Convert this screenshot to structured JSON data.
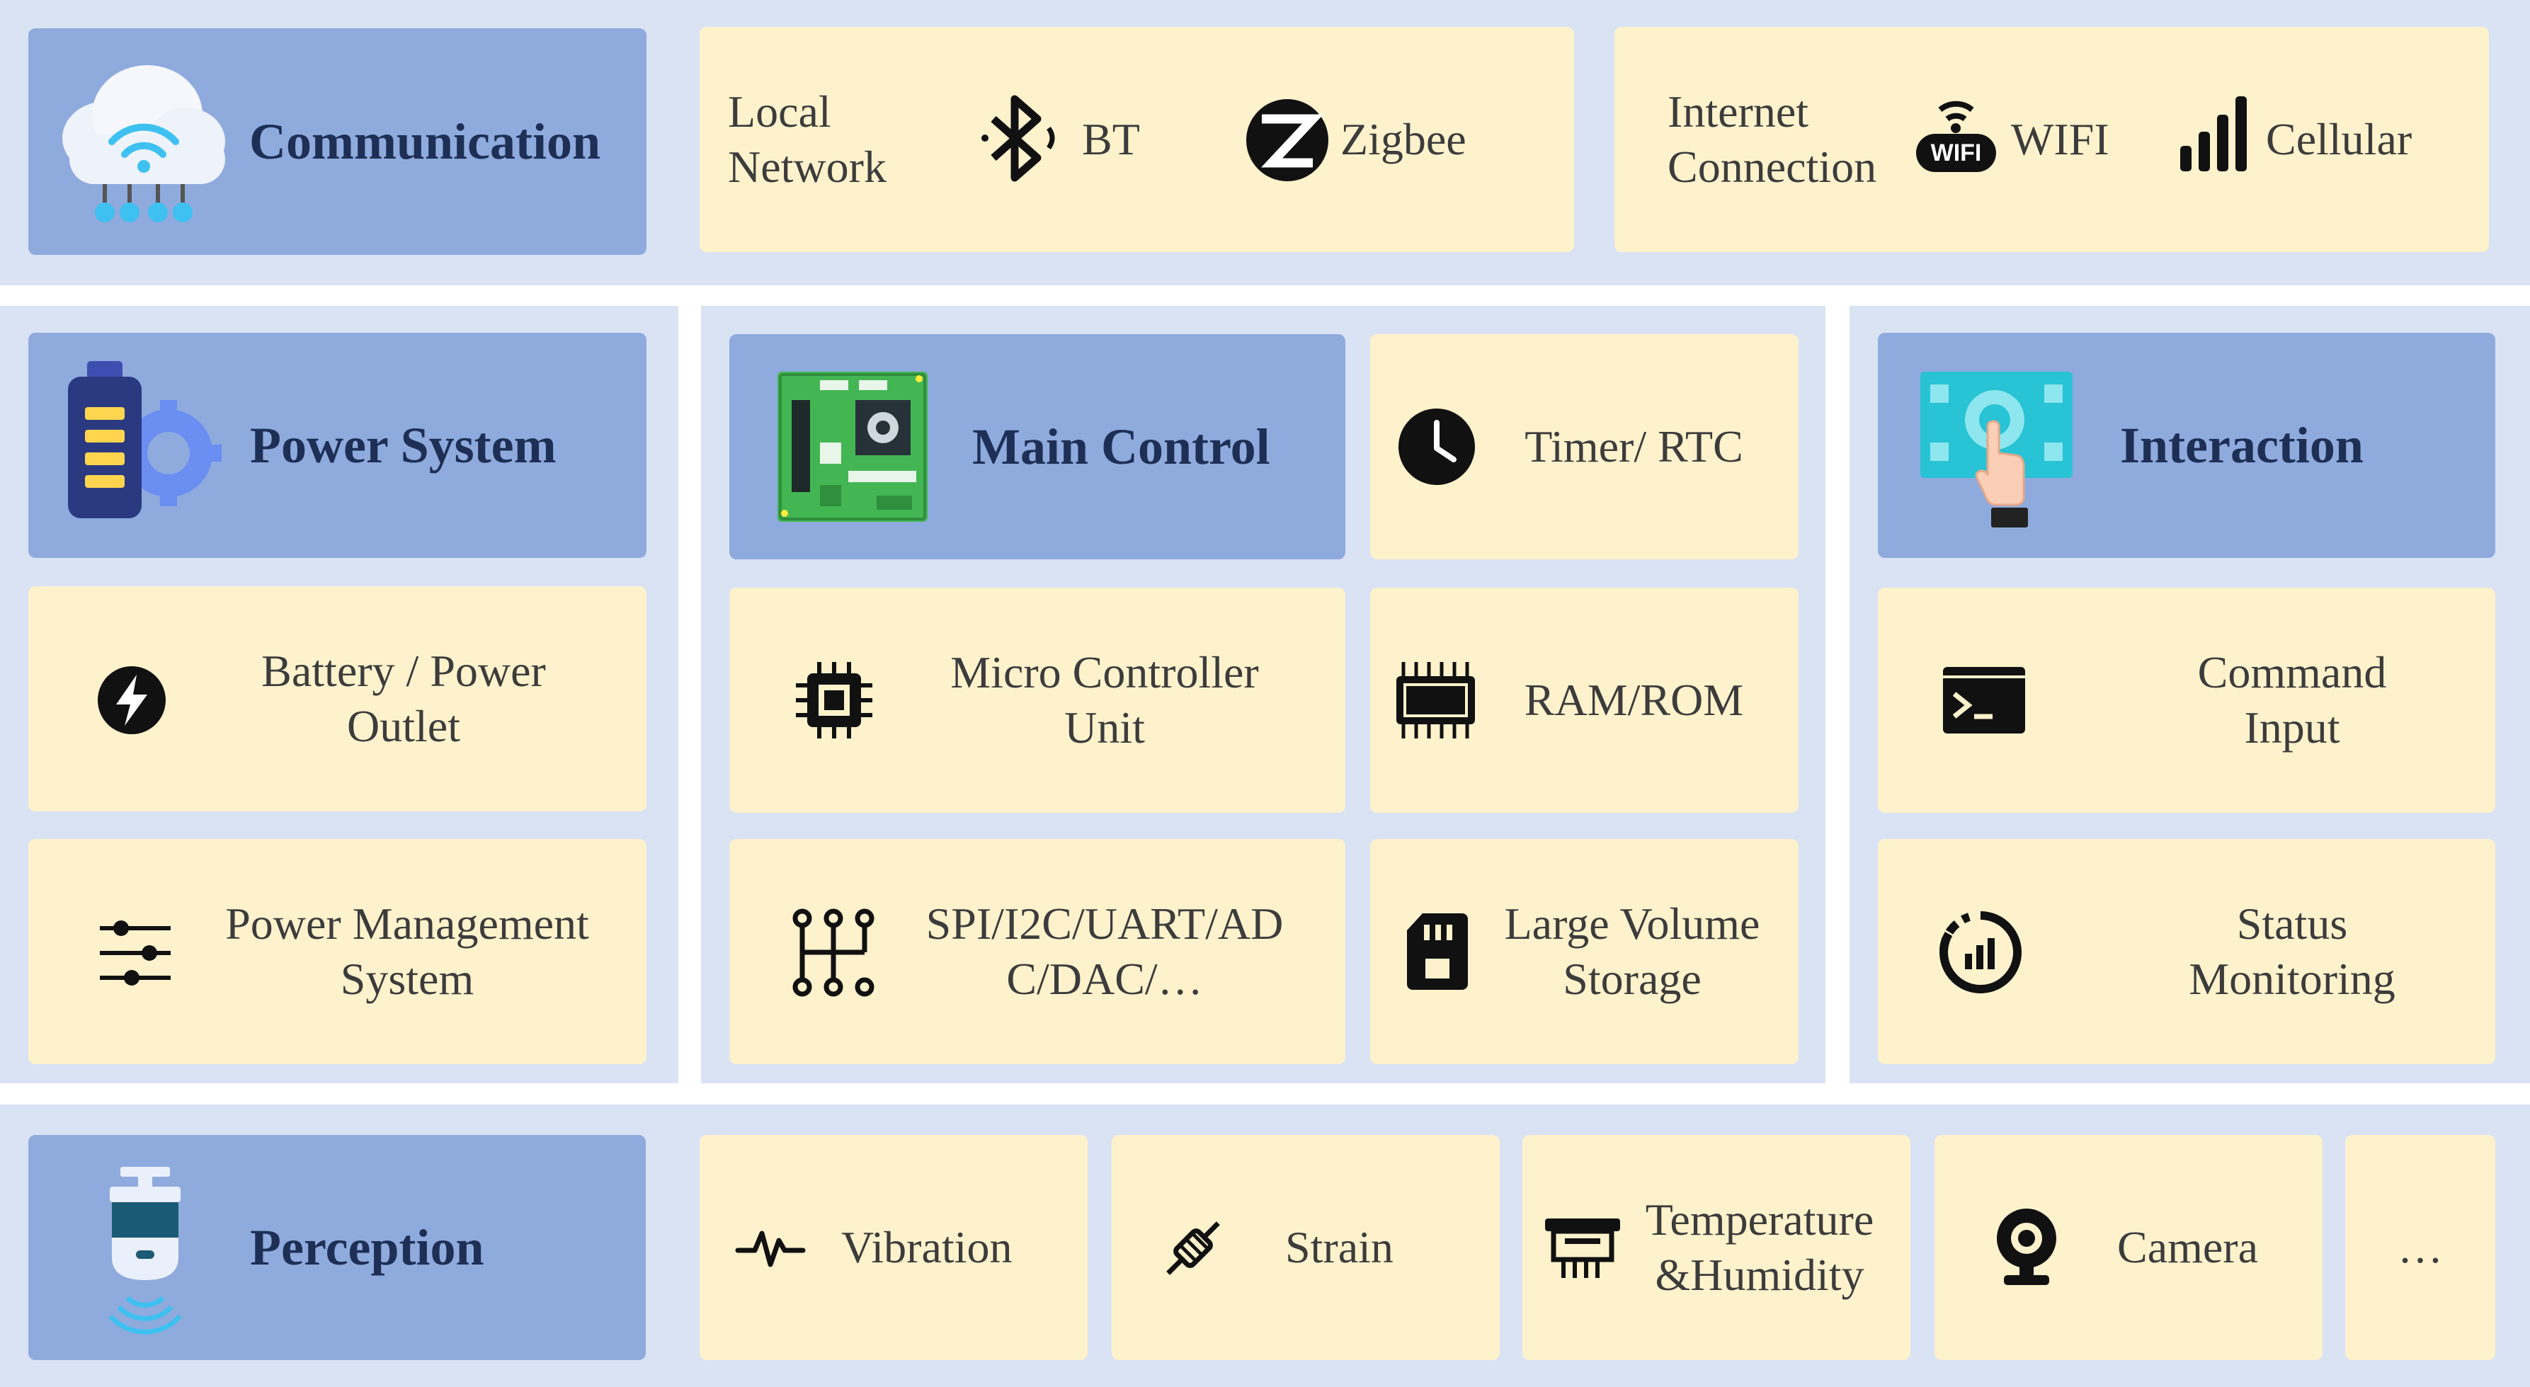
{
  "communication": {
    "title": "Communication",
    "local": {
      "label": "Local\nNetwork",
      "bt": "BT",
      "zigbee": "Zigbee"
    },
    "internet": {
      "label": "Internet\nConnection",
      "wifi_badge": "WIFI",
      "wifi": "WIFI",
      "cellular": "Cellular"
    }
  },
  "power": {
    "title": "Power System",
    "battery": "Battery / Power\nOutlet",
    "management": "Power Management\nSystem"
  },
  "main_control": {
    "title": "Main Control",
    "timer": "Timer/ RTC",
    "mcu": "Micro Controller\nUnit",
    "ram": "RAM/ROM",
    "bus": "SPI/I2C/UART/AD\nC/DAC/…",
    "storage": "Large Volume\nStorage"
  },
  "interaction": {
    "title": "Interaction",
    "command": "Command\nInput",
    "status": "Status\nMonitoring"
  },
  "perception": {
    "title": "Perception",
    "vibration": "Vibration",
    "strain": "Strain",
    "temperature": "Temperature\n&Humidity",
    "camera": "Camera",
    "more": "…"
  },
  "colors": {
    "band": "#dae3f4",
    "header": "#8faadd",
    "item": "#fef2cc",
    "header_text": "#1e2f55"
  }
}
